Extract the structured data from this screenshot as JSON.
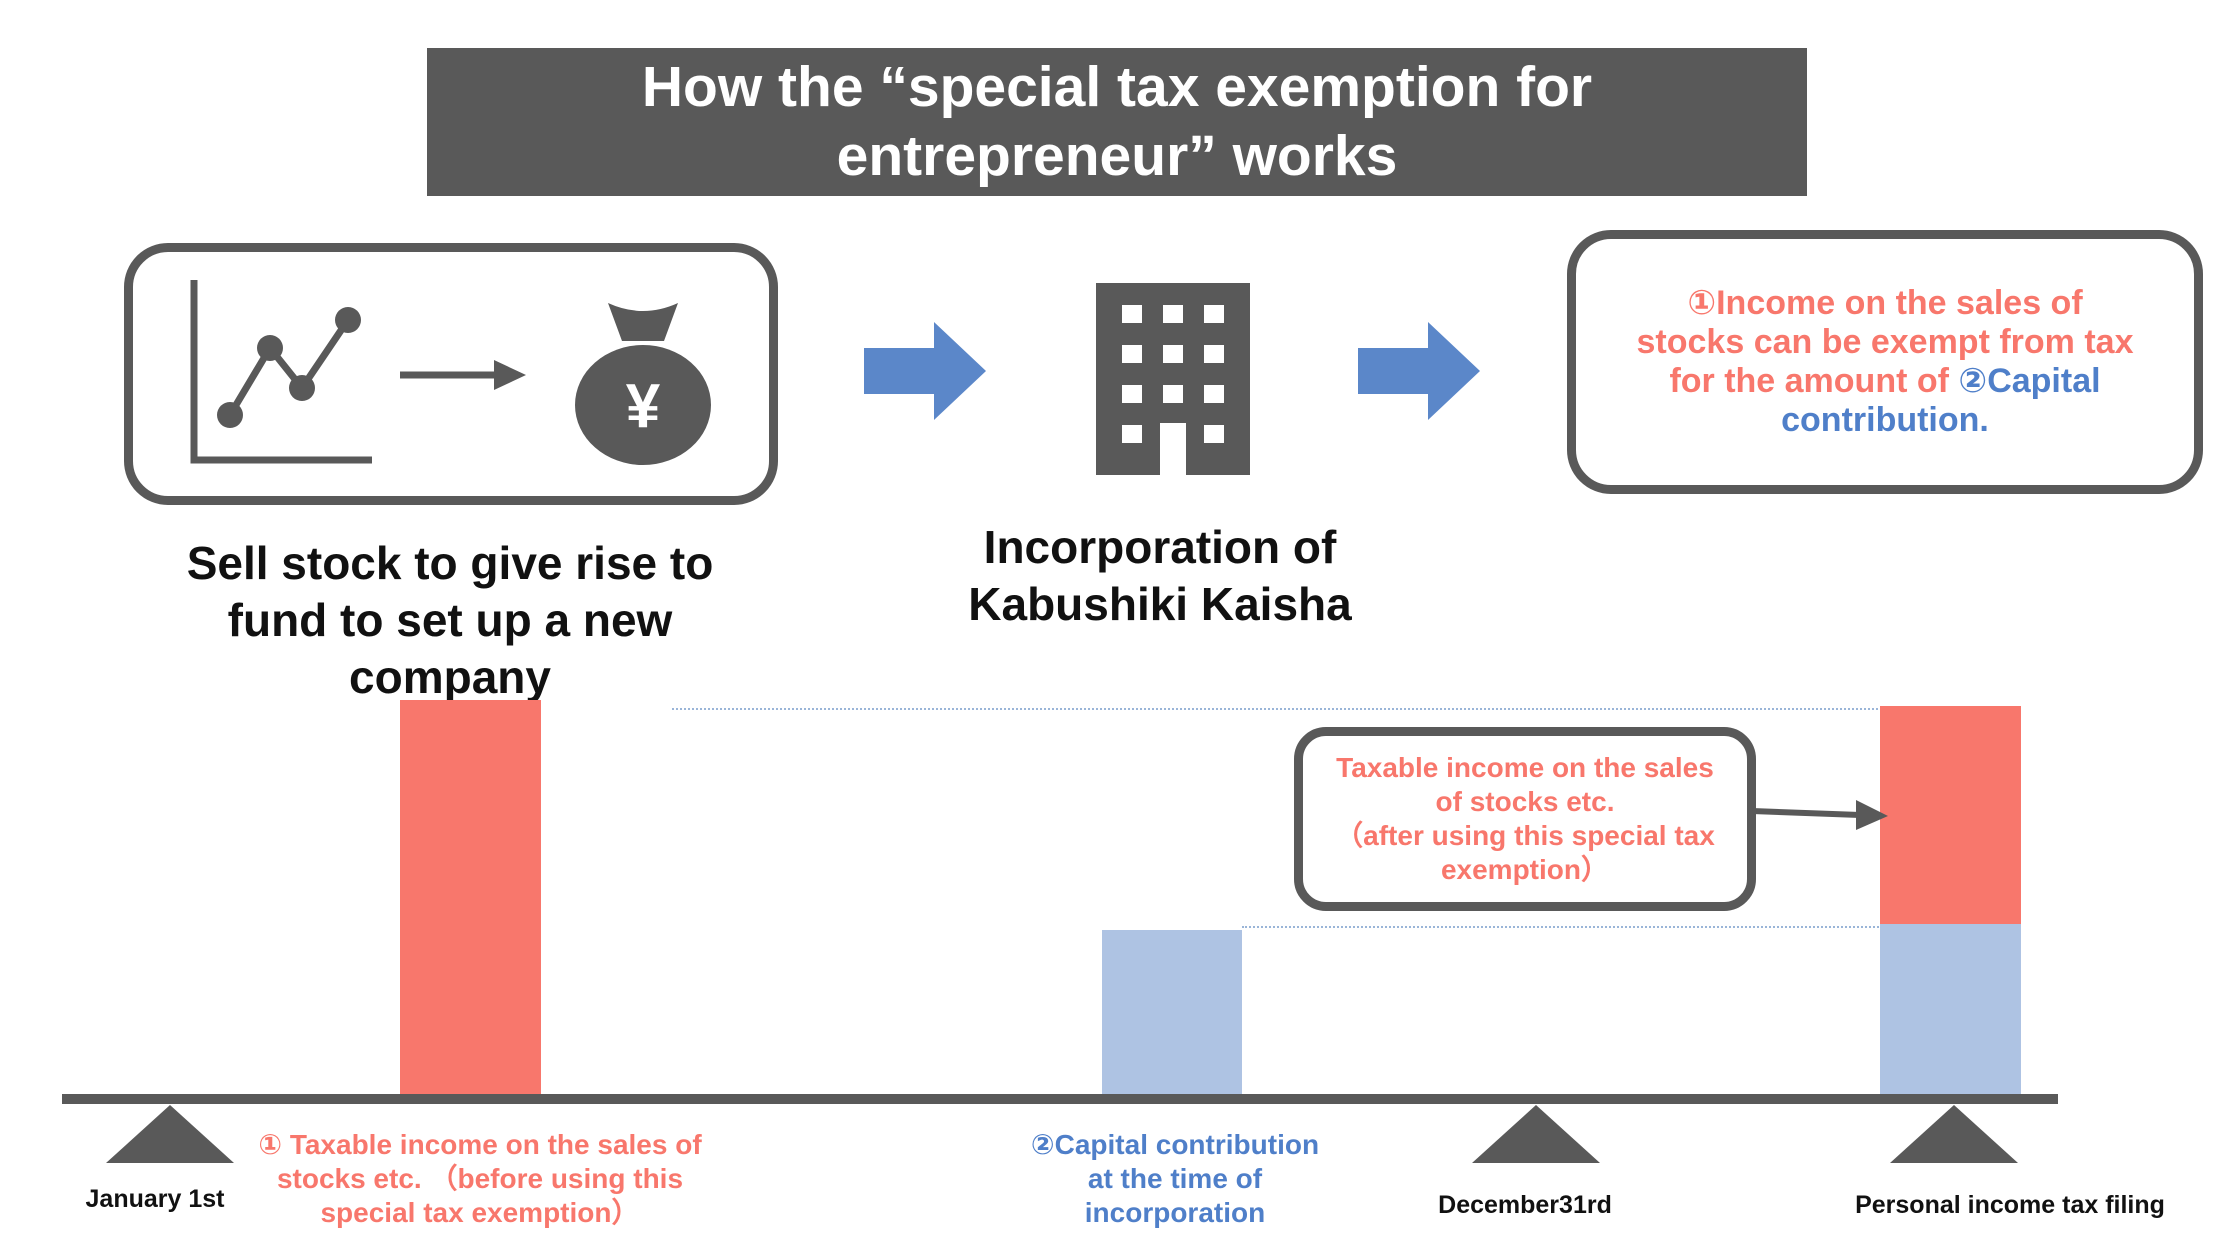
{
  "title": {
    "line1": "How the “special tax exemption for",
    "line2": "entrepreneur” works"
  },
  "colors": {
    "red": "#f8776c",
    "blue": "#aec3e3",
    "arrow_blue": "#5b87c9",
    "dark": "#595959",
    "blue_text": "#4f7fc9"
  },
  "icons": [
    "line-chart-icon",
    "money-bag-yen-icon",
    "building-icon"
  ],
  "money_symbol": "¥",
  "steps": {
    "sell": {
      "line1": "Sell stock to give rise to",
      "line2": "fund to set up a new",
      "line3": "company"
    },
    "incorporation": {
      "line1": "Incorporation of",
      "line2": "Kabushiki Kaisha"
    },
    "result": {
      "line1": "①Income on the sales of",
      "line2": "stocks can be exempt from tax",
      "line3_red": "for the amount of ",
      "line3_blue": "②Capital",
      "line4_blue": "contribution."
    }
  },
  "callout": {
    "line1": "Taxable income on the sales",
    "line2": "of stocks etc.",
    "line3": "（after using this special tax",
    "line4": "exemption）"
  },
  "bars": {
    "taxable_before": {
      "line1": "① Taxable income on the sales of",
      "line2": "stocks etc. （before using this",
      "line3": "special tax exemption）"
    },
    "capital": {
      "line1": "②Capital contribution",
      "line2": "at the time of",
      "line3": "incorporation"
    }
  },
  "timeline": {
    "jan": "January 1st",
    "dec": "December31rd",
    "filing": "Personal income tax filing"
  }
}
